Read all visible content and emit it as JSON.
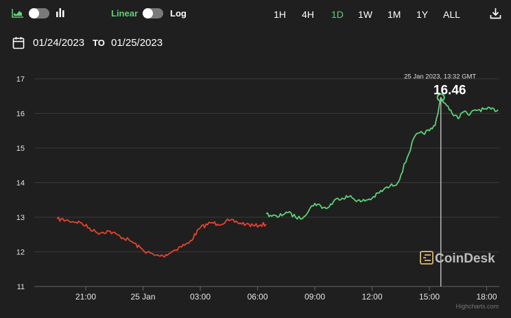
{
  "toolbar": {
    "chart_type_icons": [
      "area-chart-icon",
      "bar-chart-icon"
    ],
    "scale_linear_label": "Linear",
    "scale_log_label": "Log",
    "ranges": [
      "1H",
      "4H",
      "1D",
      "1W",
      "1M",
      "1Y",
      "ALL"
    ],
    "active_range": "1D",
    "download_icon": "download-icon"
  },
  "date_range": {
    "from": "01/24/2023",
    "to_label": "TO",
    "to": "01/25/2023",
    "icon": "calendar-icon"
  },
  "tooltip": {
    "timestamp": "25 Jan 2023, 13:32 GMT",
    "value": "16.46"
  },
  "watermark": "CoinDesk",
  "credit": "Highcharts.com",
  "colors": {
    "up": "#5fd276",
    "down": "#e8432e",
    "accent": "#5fd276",
    "background": "#1f1f1f"
  },
  "chart_data": {
    "type": "line",
    "x_tick_labels": [
      "21:00",
      "25 Jan",
      "03:00",
      "06:00",
      "09:00",
      "12:00",
      "15:00",
      "18:00"
    ],
    "y_ticks": [
      11,
      12,
      13,
      14,
      15,
      16,
      17
    ],
    "ylim": [
      11,
      17
    ],
    "xlim": [
      -0.55,
      7.25
    ],
    "grid": true,
    "series": [
      {
        "color": "down",
        "x": [
          -0.5,
          -0.3,
          -0.1,
          0.2,
          0.4,
          0.6,
          0.8,
          1.0,
          1.2,
          1.35,
          1.5,
          1.65,
          1.8,
          2.0,
          2.2,
          2.3,
          2.5,
          2.65,
          2.8,
          2.95,
          3.05,
          3.15
        ],
        "y": [
          12.95,
          12.9,
          12.85,
          12.55,
          12.6,
          12.45,
          12.3,
          12.05,
          11.9,
          11.88,
          12.0,
          12.15,
          12.25,
          12.7,
          12.85,
          12.8,
          12.9,
          12.85,
          12.8,
          12.75,
          12.78,
          12.8
        ]
      },
      {
        "color": "up",
        "x": [
          3.15,
          3.35,
          3.5,
          3.75,
          4.0,
          4.2,
          4.4,
          4.6,
          4.8,
          5.0,
          5.2,
          5.45,
          5.75,
          6.0,
          6.1,
          6.2,
          6.35,
          6.45,
          6.5,
          6.55,
          6.6,
          6.7,
          6.8,
          7.0,
          7.2
        ],
        "y": [
          13.1,
          13.0,
          13.15,
          12.95,
          13.4,
          13.25,
          13.55,
          13.6,
          13.45,
          13.55,
          13.8,
          14.0,
          15.35,
          15.5,
          15.65,
          16.46,
          16.1,
          15.95,
          15.85,
          16.0,
          16.05,
          15.95,
          16.1,
          16.12,
          16.1
        ]
      }
    ]
  }
}
